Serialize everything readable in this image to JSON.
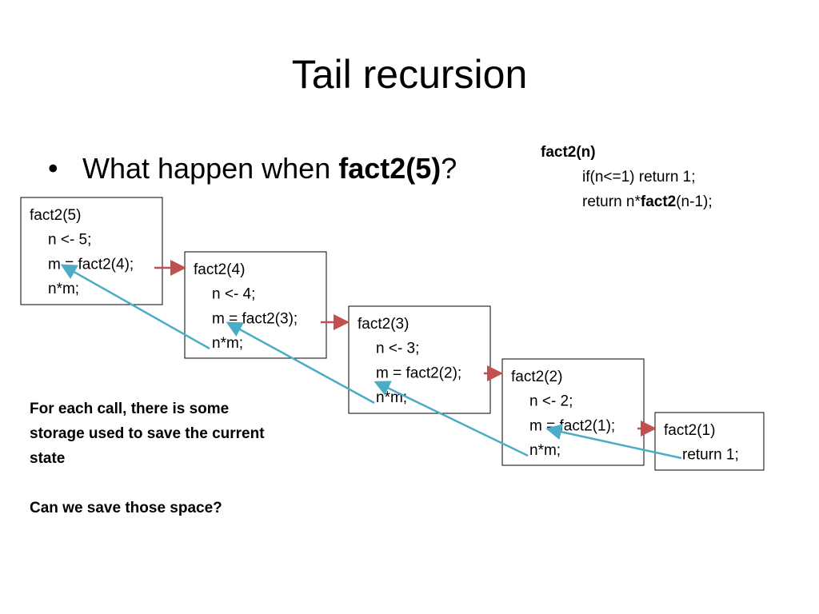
{
  "title": "Tail recursion",
  "bullet": {
    "parts": [
      "What happen when ",
      "fact2(5)",
      "?"
    ]
  },
  "code": {
    "header": "fact2(n)",
    "line1": "if(n<=1) return 1;",
    "line2": {
      "parts": [
        "return n*",
        "fact2",
        "(n-1);"
      ]
    }
  },
  "frames": [
    {
      "lines": [
        "fact2(5)",
        "n <- 5;",
        "m = fact2(4);",
        "n*m;"
      ]
    },
    {
      "lines": [
        "fact2(4)",
        "n <- 4;",
        "m = fact2(3);",
        "n*m;"
      ]
    },
    {
      "lines": [
        "fact2(3)",
        "n <- 3;",
        "m = fact2(2);",
        "n*m;"
      ]
    },
    {
      "lines": [
        "fact2(2)",
        "n <- 2;",
        "m = fact2(1);",
        "n*m;"
      ]
    },
    {
      "lines": [
        "fact2(1)",
        "return 1;"
      ]
    }
  ],
  "notes": {
    "paragraph1": [
      "For each call, there is some",
      "storage used to save the current",
      "state"
    ],
    "paragraph2": "Can we save those space?"
  }
}
